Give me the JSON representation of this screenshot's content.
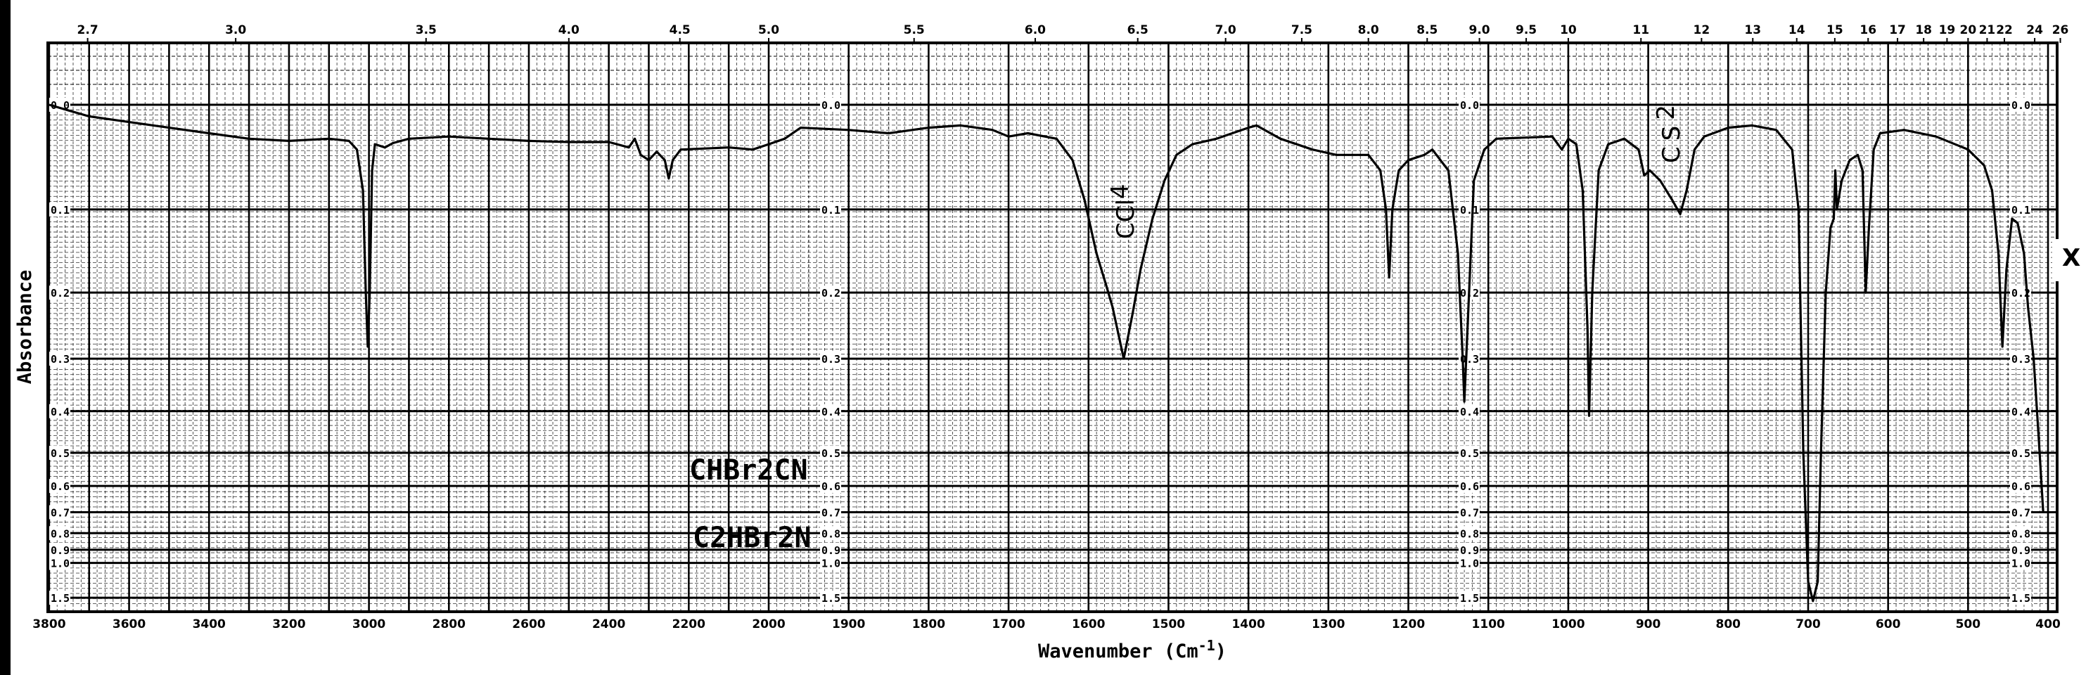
{
  "chart_data": {
    "type": "line",
    "title": "",
    "xlabel": "Wavenumber (Cm-1)",
    "xlabel_main": "Wavenumber (Cm",
    "xlabel_sup": "-1",
    "xlabel_close": ")",
    "ylabel": "Absorbance",
    "x2label": "",
    "xlim": [
      3800,
      400
    ],
    "ylim": [
      0.0,
      1.5
    ],
    "x_scale_note": "scale doubles below 2000",
    "y_scale": "linear in transmittance (log absorbance)",
    "grid": true,
    "line_color": "#000000",
    "background_color": "#ffffff",
    "x_ticks": [
      3800,
      3600,
      3400,
      3200,
      3000,
      2800,
      2600,
      2400,
      2200,
      2000,
      1900,
      1800,
      1700,
      1600,
      1500,
      1400,
      1300,
      1200,
      1100,
      1000,
      900,
      800,
      700,
      600,
      500,
      400
    ],
    "y_ticks": [
      "0.0",
      "0.1",
      "0.2",
      "0.3",
      "0.4",
      "0.5",
      "0.6",
      "0.7",
      "0.8",
      "0.9",
      "1.0",
      "1.5"
    ],
    "micron_ticks": [
      "2.7",
      "3.0",
      "3.5",
      "4.0",
      "4.5",
      "5.0",
      "5.5",
      "6.0",
      "6.5",
      "7.0",
      "7.5",
      "8.0",
      "8.5",
      "9.0",
      "9.5",
      "10",
      "11",
      "12",
      "13",
      "14",
      "15",
      "16",
      "17",
      "18",
      "19",
      "20",
      "21",
      "22",
      "24",
      "26"
    ],
    "annotations": [
      {
        "text": "CCl4",
        "main": "CCl",
        "sub": "4",
        "x": 1556
      },
      {
        "text": "CS2",
        "main": "C S",
        "sub": "2",
        "x": 870
      }
    ],
    "handwritten": [
      {
        "text": "CHBr2CN"
      },
      {
        "text": "C2HBr2N"
      }
    ],
    "margin_mark": "X",
    "series": [
      {
        "points": [
          [
            3800,
            0.0
          ],
          [
            3750,
            0.005
          ],
          [
            3700,
            0.01
          ],
          [
            3600,
            0.015
          ],
          [
            3500,
            0.02
          ],
          [
            3400,
            0.025
          ],
          [
            3300,
            0.03
          ],
          [
            3200,
            0.032
          ],
          [
            3100,
            0.03
          ],
          [
            3050,
            0.032
          ],
          [
            3030,
            0.04
          ],
          [
            3015,
            0.08
          ],
          [
            3008,
            0.2
          ],
          [
            3003,
            0.28
          ],
          [
            2998,
            0.2
          ],
          [
            2992,
            0.06
          ],
          [
            2985,
            0.035
          ],
          [
            2960,
            0.038
          ],
          [
            2940,
            0.034
          ],
          [
            2900,
            0.03
          ],
          [
            2800,
            0.028
          ],
          [
            2700,
            0.03
          ],
          [
            2600,
            0.032
          ],
          [
            2500,
            0.033
          ],
          [
            2400,
            0.033
          ],
          [
            2350,
            0.038
          ],
          [
            2335,
            0.03
          ],
          [
            2320,
            0.045
          ],
          [
            2300,
            0.05
          ],
          [
            2280,
            0.042
          ],
          [
            2260,
            0.05
          ],
          [
            2250,
            0.068
          ],
          [
            2240,
            0.05
          ],
          [
            2220,
            0.04
          ],
          [
            2100,
            0.038
          ],
          [
            2040,
            0.04
          ],
          [
            2000,
            0.035
          ],
          [
            1980,
            0.03
          ],
          [
            1960,
            0.02
          ],
          [
            1900,
            0.022
          ],
          [
            1850,
            0.025
          ],
          [
            1800,
            0.02
          ],
          [
            1760,
            0.018
          ],
          [
            1720,
            0.022
          ],
          [
            1700,
            0.028
          ],
          [
            1676,
            0.025
          ],
          [
            1640,
            0.03
          ],
          [
            1620,
            0.05
          ],
          [
            1605,
            0.09
          ],
          [
            1590,
            0.15
          ],
          [
            1578,
            0.19
          ],
          [
            1570,
            0.22
          ],
          [
            1556,
            0.3
          ],
          [
            1545,
            0.23
          ],
          [
            1535,
            0.17
          ],
          [
            1520,
            0.11
          ],
          [
            1505,
            0.07
          ],
          [
            1490,
            0.045
          ],
          [
            1470,
            0.035
          ],
          [
            1440,
            0.03
          ],
          [
            1400,
            0.02
          ],
          [
            1390,
            0.018
          ],
          [
            1360,
            0.03
          ],
          [
            1320,
            0.04
          ],
          [
            1290,
            0.045
          ],
          [
            1250,
            0.045
          ],
          [
            1235,
            0.06
          ],
          [
            1228,
            0.1
          ],
          [
            1224,
            0.18
          ],
          [
            1220,
            0.1
          ],
          [
            1212,
            0.06
          ],
          [
            1200,
            0.05
          ],
          [
            1180,
            0.045
          ],
          [
            1170,
            0.04
          ],
          [
            1150,
            0.06
          ],
          [
            1138,
            0.15
          ],
          [
            1132,
            0.3
          ],
          [
            1130,
            0.38
          ],
          [
            1126,
            0.25
          ],
          [
            1118,
            0.07
          ],
          [
            1105,
            0.04
          ],
          [
            1090,
            0.03
          ],
          [
            1020,
            0.028
          ],
          [
            1008,
            0.04
          ],
          [
            1000,
            0.03
          ],
          [
            990,
            0.035
          ],
          [
            982,
            0.08
          ],
          [
            976,
            0.25
          ],
          [
            974,
            0.41
          ],
          [
            970,
            0.2
          ],
          [
            962,
            0.06
          ],
          [
            950,
            0.035
          ],
          [
            930,
            0.03
          ],
          [
            912,
            0.04
          ],
          [
            905,
            0.065
          ],
          [
            898,
            0.06
          ],
          [
            885,
            0.07
          ],
          [
            870,
            0.09
          ],
          [
            860,
            0.105
          ],
          [
            852,
            0.08
          ],
          [
            842,
            0.04
          ],
          [
            830,
            0.028
          ],
          [
            800,
            0.02
          ],
          [
            770,
            0.018
          ],
          [
            740,
            0.022
          ],
          [
            720,
            0.04
          ],
          [
            712,
            0.1
          ],
          [
            706,
            0.5
          ],
          [
            700,
            1.2
          ],
          [
            694,
            1.6
          ],
          [
            688,
            1.2
          ],
          [
            684,
            0.5
          ],
          [
            678,
            0.2
          ],
          [
            672,
            0.12
          ],
          [
            668,
            0.11
          ],
          [
            666,
            0.06
          ],
          [
            664,
            0.1
          ],
          [
            658,
            0.07
          ],
          [
            648,
            0.05
          ],
          [
            638,
            0.045
          ],
          [
            632,
            0.06
          ],
          [
            628,
            0.2
          ],
          [
            624,
            0.12
          ],
          [
            618,
            0.04
          ],
          [
            610,
            0.025
          ],
          [
            580,
            0.022
          ],
          [
            540,
            0.028
          ],
          [
            500,
            0.04
          ],
          [
            480,
            0.055
          ],
          [
            470,
            0.08
          ],
          [
            462,
            0.15
          ],
          [
            457,
            0.28
          ],
          [
            452,
            0.17
          ],
          [
            445,
            0.11
          ],
          [
            438,
            0.115
          ],
          [
            430,
            0.15
          ],
          [
            425,
            0.22
          ],
          [
            418,
            0.3
          ],
          [
            412,
            0.45
          ],
          [
            406,
            0.7
          ]
        ]
      }
    ]
  }
}
